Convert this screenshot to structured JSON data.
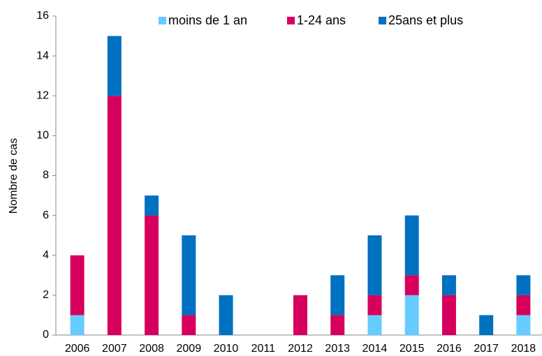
{
  "chart_data": {
    "type": "stacked_bar",
    "y_label": "Nombre de cas",
    "categories": [
      "2006",
      "2007",
      "2008",
      "2009",
      "2010",
      "2011",
      "2012",
      "2013",
      "2014",
      "2015",
      "2016",
      "2017",
      "2018"
    ],
    "series": [
      {
        "name": "moins de 1 an",
        "color": "#66ccff",
        "values": [
          1,
          0,
          0,
          0,
          0,
          0,
          0,
          0,
          1,
          2,
          0,
          0,
          1
        ]
      },
      {
        "name": "1-24 ans",
        "color": "#d6005c",
        "values": [
          3,
          12,
          6,
          1,
          0,
          0,
          2,
          1,
          1,
          1,
          2,
          0,
          1
        ]
      },
      {
        "name": "25ans et plus",
        "color": "#0070c0",
        "values": [
          0,
          3,
          1,
          4,
          2,
          0,
          0,
          2,
          3,
          3,
          1,
          1,
          1
        ]
      }
    ],
    "ylim": [
      0,
      16
    ],
    "yticks": [
      0,
      2,
      4,
      6,
      8,
      10,
      12,
      14,
      16
    ],
    "legend": "top"
  }
}
